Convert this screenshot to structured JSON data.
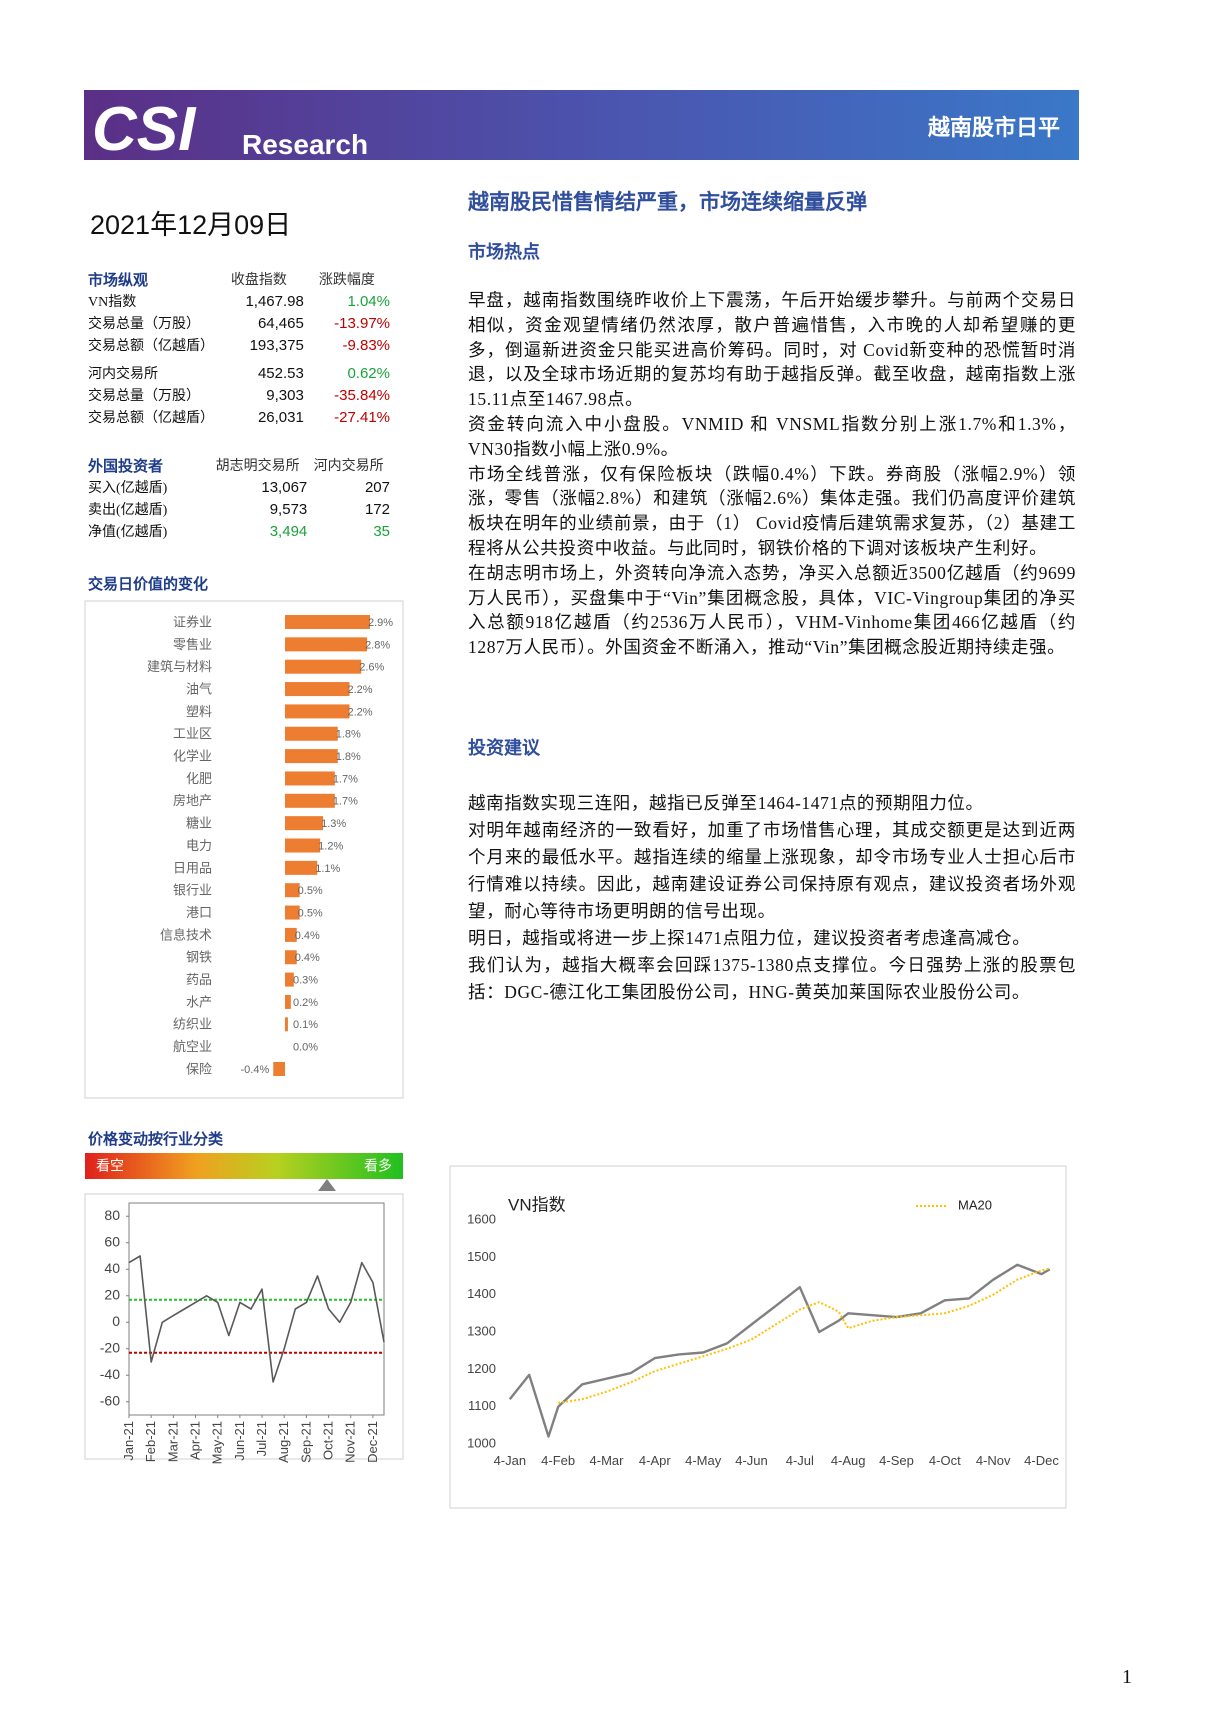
{
  "header": {
    "logo": "CSI",
    "brand": "Research",
    "tag": "越南股市日平"
  },
  "date": "2021年12月09日",
  "headline": "越南股民惜售情结严重，市场连续缩量反弹",
  "market_table": {
    "headers": [
      "市场纵观",
      "收盘指数",
      "涨跌幅度"
    ],
    "groups": [
      [
        [
          "VN指数",
          "1,467.98",
          "1.04%"
        ],
        [
          "交易总量（万股）",
          "64,465",
          "-13.97%"
        ],
        [
          "交易总额（亿越盾）",
          "193,375",
          "-9.83%"
        ]
      ],
      [
        [
          "河内交易所",
          "452.53",
          "0.62%"
        ],
        [
          "交易总量（万股）",
          "9,303",
          "-35.84%"
        ],
        [
          "交易总额（亿越盾）",
          "26,031",
          "-27.41%"
        ]
      ]
    ]
  },
  "foreign_table": {
    "headers": [
      "外国投资者",
      "胡志明交易所",
      "河内交易所"
    ],
    "rows": [
      [
        "买入(亿越盾)",
        "13,067",
        "207"
      ],
      [
        "卖出(亿越盾)",
        "9,573",
        "172"
      ],
      [
        "净值(亿越盾)",
        "3,494",
        "35"
      ]
    ]
  },
  "sections": [
    {
      "title": "市场热点",
      "paragraphs": [
        "早盘，越南指数围绕昨收价上下震荡，午后开始缓步攀升。与前两个交易日相似，资金观望情绪仍然浓厚，散户普遍惜售，入市晚的人却希望赚的更多，倒逼新进资金只能买进高价筹码。同时，对 Covid新变种的恐慌暂时消退，以及全球市场近期的复苏均有助于越指反弹。截至收盘，越南指数上涨15.11点至1467.98点。",
        "资金转向流入中小盘股。VNMID 和 VNSML指数分别上涨1.7%和1.3%，VN30指数小幅上涨0.9%。",
        "市场全线普涨，仅有保险板块（跌幅0.4%）下跌。券商股（涨幅2.9%）领涨，零售（涨幅2.8%）和建筑（涨幅2.6%）集体走强。我们仍高度评价建筑板块在明年的业绩前景，由于（1） Covid疫情后建筑需求复苏，（2）基建工程将从公共投资中收益。与此同时，钢铁价格的下调对该板块产生利好。",
        "在胡志明市场上，外资转向净流入态势，净买入总额近3500亿越盾（约9699万人民币），买盘集中于“Vin”集团概念股，具体，VIC-Vingroup集团的净买入总额918亿越盾（约2536万人民币），VHM-Vinhome集团466亿越盾（约1287万人民币）。外国资金不断涌入，推动“Vin”集团概念股近期持续走强。"
      ]
    },
    {
      "title": "投资建议",
      "paragraphs": [
        "越南指数实现三连阳，越指已反弹至1464-1471点的预期阻力位。",
        "对明年越南经济的一致看好，加重了市场惜售心理，其成交额更是达到近两个月来的最低水平。越指连续的缩量上涨现象，却令市场专业人士担心后市行情难以持续。因此，越南建设证券公司保持原有观点，建议投资者场外观望，耐心等待市场更明朗的信号出现。",
        "明日，越指或将进一步上探1471点阻力位，建议投资者考虑逢高减仓。",
        "我们认为，越指大概率会回踩1375-1380点支撑位。今日强势上涨的股票包括：DGC-德江化工集团股份公司，HNG-黄英加莱国际农业股份公司。"
      ]
    }
  ],
  "page_number": "1",
  "chart_data": [
    {
      "type": "bar",
      "orientation": "horizontal",
      "title": "交易日价值的变化",
      "color": "#ed7d31",
      "categories": [
        "证券业",
        "零售业",
        "建筑与材料",
        "油气",
        "塑料",
        "工业区",
        "化学业",
        "化肥",
        "房地产",
        "糖业",
        "电力",
        "日用品",
        "银行业",
        "港口",
        "信息技术",
        "钢铁",
        "药品",
        "水产",
        "纺织业",
        "航空业",
        "保险"
      ],
      "values": [
        2.9,
        2.8,
        2.6,
        2.2,
        2.2,
        1.8,
        1.8,
        1.7,
        1.7,
        1.3,
        1.2,
        1.1,
        0.5,
        0.5,
        0.4,
        0.4,
        0.3,
        0.2,
        0.1,
        0.0,
        -0.4
      ],
      "value_labels": [
        "2.9%",
        "2.8%",
        "2.6%",
        "2.2%",
        "2.2%",
        "1.8%",
        "1.8%",
        "1.7%",
        "1.7%",
        "1.3%",
        "1.2%",
        "1.1%",
        "0.5%",
        "0.5%",
        "0.4%",
        "0.4%",
        "0.3%",
        "0.2%",
        "0.1%",
        "0.0%",
        "-0.4%"
      ]
    },
    {
      "type": "line",
      "title": "价格变动按行业分类",
      "scale_labels": [
        "看空",
        "看多"
      ],
      "grid": false,
      "x": [
        0,
        0.5,
        1,
        1.5,
        2,
        2.5,
        3,
        3.5,
        4,
        4.5,
        5,
        5.5,
        6,
        6.5,
        7,
        7.5,
        8,
        8.5,
        9,
        9.5,
        10,
        10.5,
        11,
        11.5
      ],
      "series": [
        {
          "color": "#595959",
          "values": [
            45,
            50,
            -30,
            0,
            5,
            10,
            15,
            20,
            15,
            -10,
            15,
            10,
            25,
            -45,
            -20,
            10,
            15,
            35,
            10,
            0,
            15,
            45,
            30,
            -15
          ]
        }
      ],
      "reference_lines": [
        {
          "value": 17,
          "color": "#22c02a"
        },
        {
          "value": -23,
          "color": "#c00000"
        }
      ],
      "xlim": [
        0,
        11.5
      ],
      "xticks": [
        {
          "value": 0,
          "label": "Jan-21"
        },
        {
          "value": 1,
          "label": "Feb-21"
        },
        {
          "value": 2,
          "label": "Mar-21"
        },
        {
          "value": 3,
          "label": "Apr-21"
        },
        {
          "value": 4,
          "label": "May-21"
        },
        {
          "value": 5,
          "label": "Jun-21"
        },
        {
          "value": 6,
          "label": "Jul-21"
        },
        {
          "value": 7,
          "label": "Aug-21"
        },
        {
          "value": 8,
          "label": "Sep-21"
        },
        {
          "value": 9,
          "label": "Oct-21"
        },
        {
          "value": 10,
          "label": "Nov-21"
        },
        {
          "value": 11,
          "label": "Dec-21"
        }
      ],
      "ylim": [
        -70,
        90
      ],
      "yticks": [
        80,
        60,
        40,
        20,
        0,
        -20,
        -40,
        -60
      ]
    },
    {
      "type": "line",
      "title": "VN指数",
      "grid": false,
      "legend": "top-right",
      "x": [
        0,
        0.4,
        0.8,
        1,
        1.5,
        2,
        2.5,
        3,
        3.5,
        4,
        4.5,
        5,
        5.5,
        6,
        6.4,
        6.8,
        7,
        7.5,
        8,
        8.5,
        9,
        9.5,
        10,
        10.5,
        11,
        11.17
      ],
      "series": [
        {
          "color": "#808080",
          "values": [
            1120,
            1185,
            1020,
            1100,
            1160,
            1175,
            1190,
            1230,
            1240,
            1245,
            1270,
            1320,
            1370,
            1420,
            1300,
            1330,
            1350,
            1345,
            1340,
            1350,
            1385,
            1390,
            1440,
            1480,
            1455,
            1467.98
          ]
        },
        {
          "name": "MA20",
          "color": "#ffc000",
          "dashed": true,
          "values": [
            null,
            null,
            null,
            1110,
            1120,
            1140,
            1165,
            1195,
            1215,
            1235,
            1255,
            1280,
            1320,
            1360,
            1380,
            1355,
            1310,
            1330,
            1340,
            1345,
            1350,
            1370,
            1400,
            1440,
            1465,
            1470
          ]
        }
      ],
      "xlim": [
        -0.1,
        11.3
      ],
      "xticks": [
        {
          "value": 0,
          "label": "4-Jan"
        },
        {
          "value": 1,
          "label": "4-Feb"
        },
        {
          "value": 2,
          "label": "4-Mar"
        },
        {
          "value": 3,
          "label": "4-Apr"
        },
        {
          "value": 4,
          "label": "4-May"
        },
        {
          "value": 5,
          "label": "4-Jun"
        },
        {
          "value": 6,
          "label": "4-Jul"
        },
        {
          "value": 7,
          "label": "4-Aug"
        },
        {
          "value": 8,
          "label": "4-Sep"
        },
        {
          "value": 9,
          "label": "4-Oct"
        },
        {
          "value": 10,
          "label": "4-Nov"
        },
        {
          "value": 11,
          "label": "4-Dec"
        }
      ],
      "ylim": [
        1000,
        1600
      ],
      "yticks": [
        1000,
        1100,
        1200,
        1300,
        1400,
        1500,
        1600
      ]
    }
  ]
}
